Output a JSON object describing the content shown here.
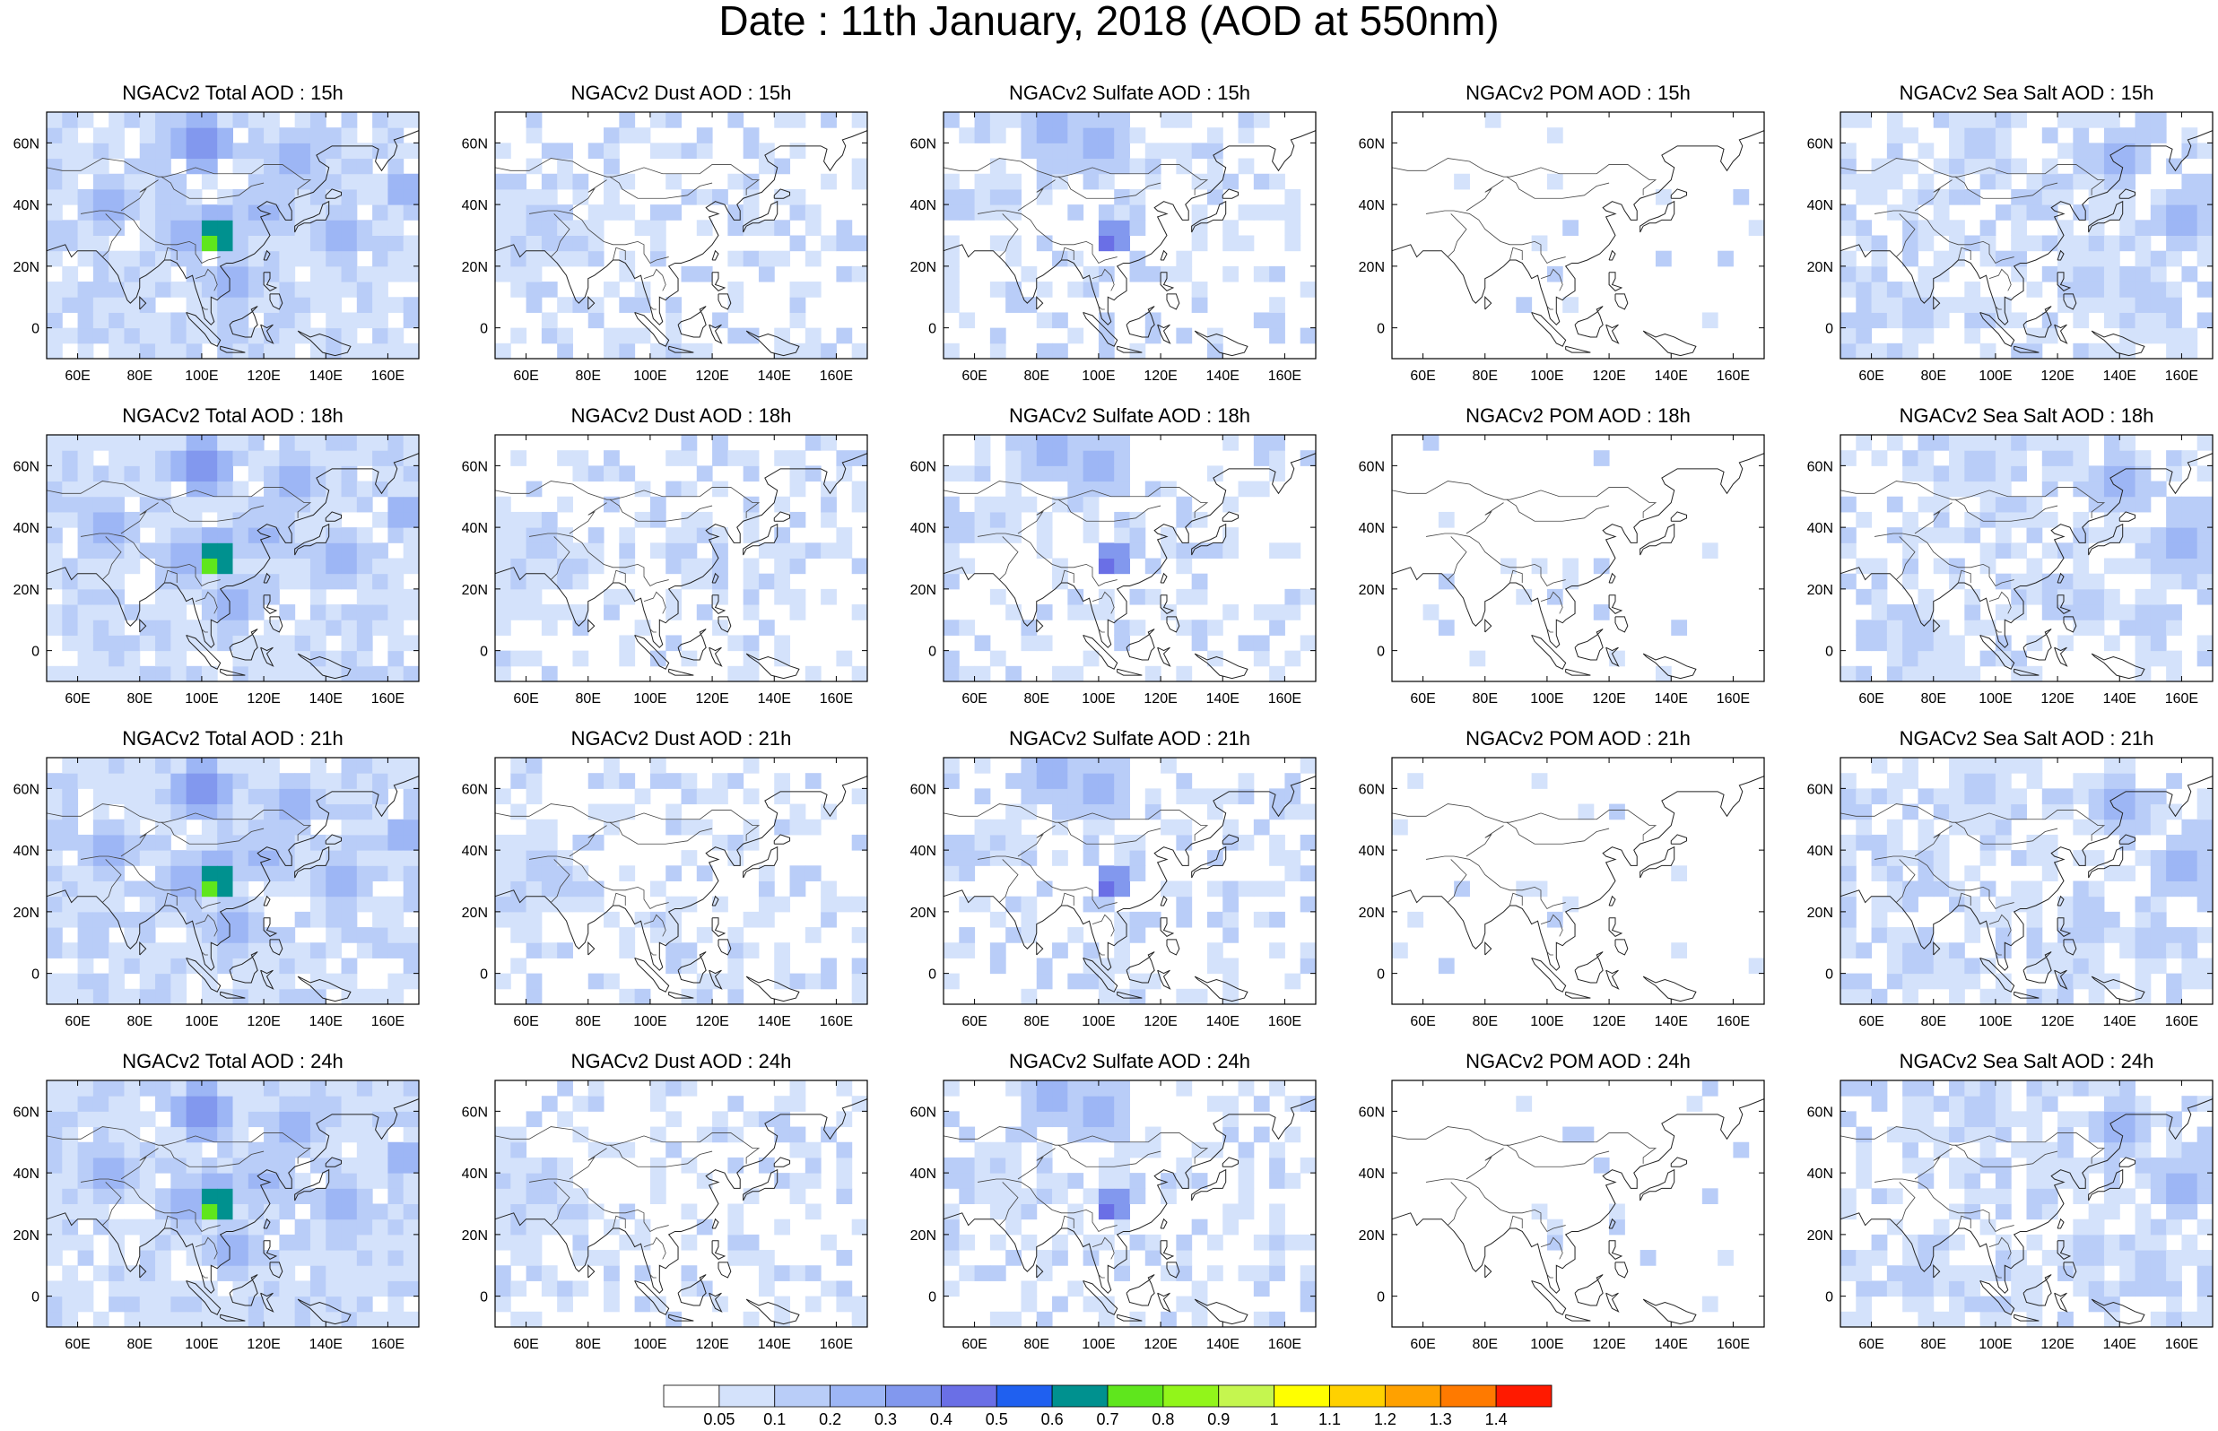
{
  "title": "Date : 11th January, 2018 (AOD at 550nm)",
  "panel_titles": [
    [
      "NGACv2 Total AOD : 15h",
      "NGACv2 Dust AOD : 15h",
      "NGACv2 Sulfate AOD : 15h",
      "NGACv2 POM AOD : 15h",
      "NGACv2 Sea Salt AOD : 15h"
    ],
    [
      "NGACv2 Total AOD : 18h",
      "NGACv2 Dust AOD : 18h",
      "NGACv2 Sulfate AOD : 18h",
      "NGACv2 POM AOD : 18h",
      "NGACv2 Sea Salt AOD : 18h"
    ],
    [
      "NGACv2 Total AOD : 21h",
      "NGACv2 Dust AOD : 21h",
      "NGACv2 Sulfate AOD : 21h",
      "NGACv2 POM AOD : 21h",
      "NGACv2 Sea Salt AOD : 21h"
    ],
    [
      "NGACv2 Total AOD : 24h",
      "NGACv2 Dust AOD : 24h",
      "NGACv2 Sulfate AOD : 24h",
      "NGACv2 POM AOD : 24h",
      "NGACv2 Sea Salt  AOD : 24h"
    ]
  ],
  "chart_data": {
    "type": "heatmap",
    "title": "Date : 11th January, 2018 (AOD at 550nm)",
    "variables": [
      "Total",
      "Dust",
      "Sulfate",
      "POM",
      "Sea Salt"
    ],
    "forecast_hours": [
      "15h",
      "18h",
      "21h",
      "24h"
    ],
    "x_ticks": [
      "60E",
      "80E",
      "100E",
      "120E",
      "140E",
      "160E"
    ],
    "y_ticks": [
      "60N",
      "40N",
      "20N",
      "0"
    ],
    "x_tick_values": [
      60,
      80,
      100,
      120,
      140,
      160
    ],
    "y_tick_values": [
      60,
      40,
      20,
      0
    ],
    "xlim": [
      50,
      170
    ],
    "ylim": [
      -10,
      70
    ],
    "colorbar": {
      "labels": [
        "0.05",
        "0.1",
        "0.2",
        "0.3",
        "0.4",
        "0.5",
        "0.6",
        "0.7",
        "0.8",
        "0.9",
        "1",
        "1.1",
        "1.2",
        "1.3",
        "1.4"
      ],
      "colors": [
        "#ffffff",
        "#d4e2fb",
        "#b9cdf8",
        "#9db6f5",
        "#8298ee",
        "#6a6fe6",
        "#1f60f0",
        "#00918f",
        "#5fe61d",
        "#92f51a",
        "#c5f64f",
        "#ffff00",
        "#ffd100",
        "#ffa100",
        "#ff7a00",
        "#ff1a00"
      ]
    }
  }
}
